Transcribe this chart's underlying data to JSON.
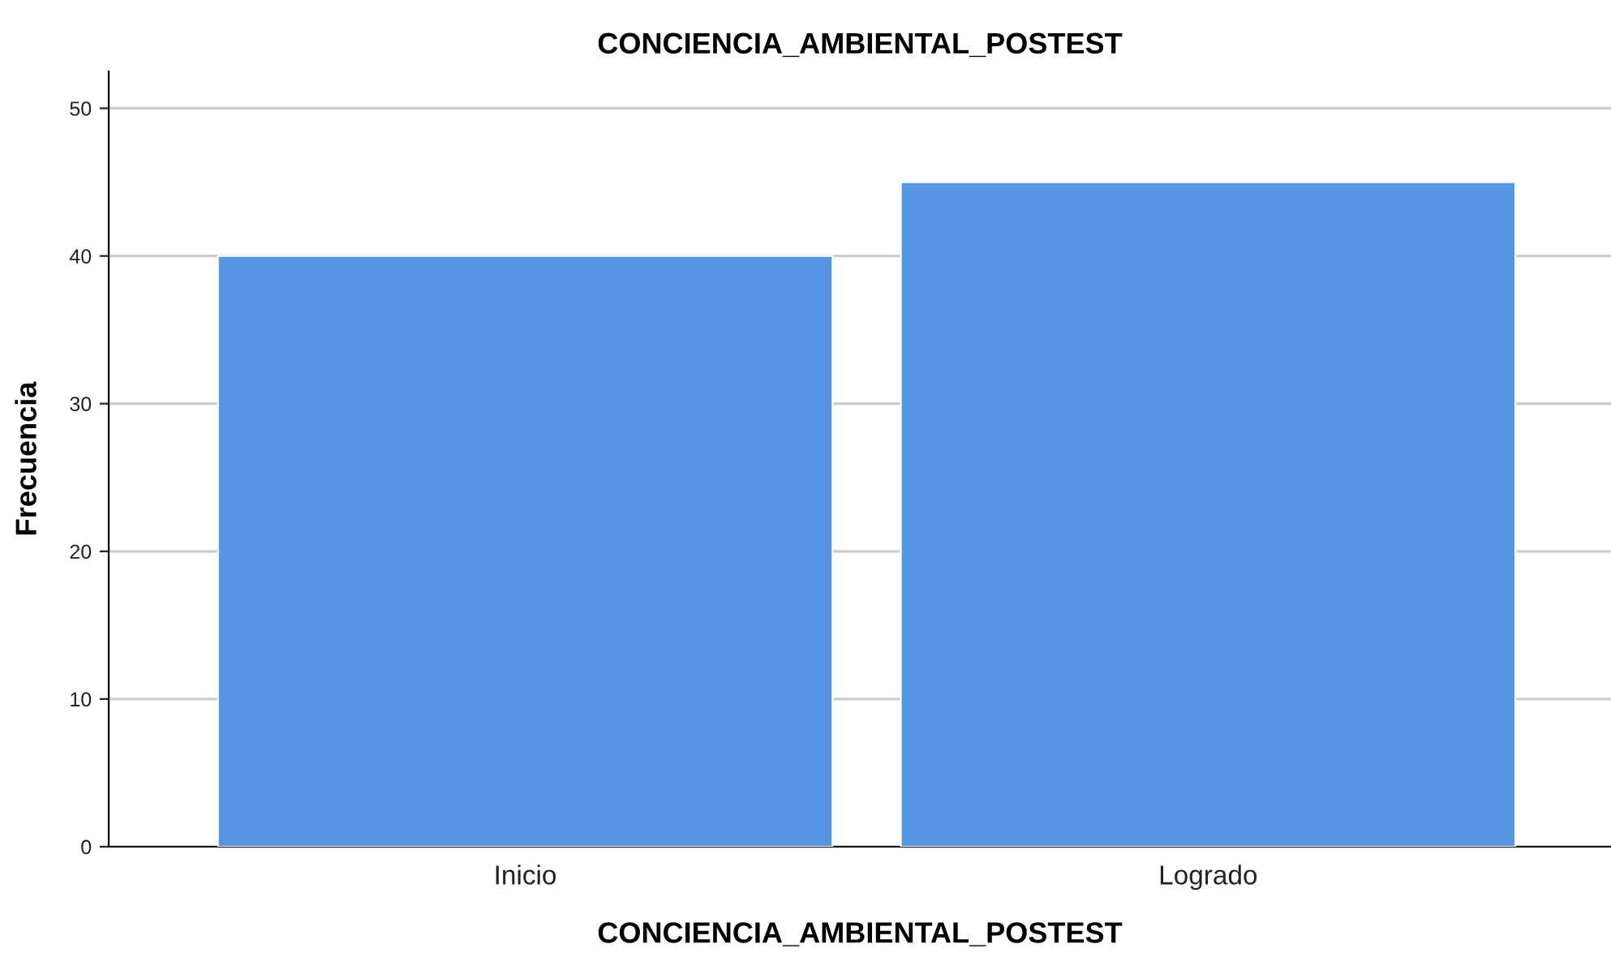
{
  "chart_data": {
    "type": "bar",
    "title": "CONCIENCIA_AMBIENTAL_POSTEST",
    "xlabel": "CONCIENCIA_AMBIENTAL_POSTEST",
    "ylabel": "Frecuencia",
    "categories": [
      "Inicio",
      "Logrado"
    ],
    "values": [
      40,
      45
    ],
    "color": "#5596e5",
    "ylim": [
      0,
      52.5
    ],
    "yticks": [
      0,
      10,
      20,
      30,
      40,
      50
    ],
    "grid": "y"
  }
}
